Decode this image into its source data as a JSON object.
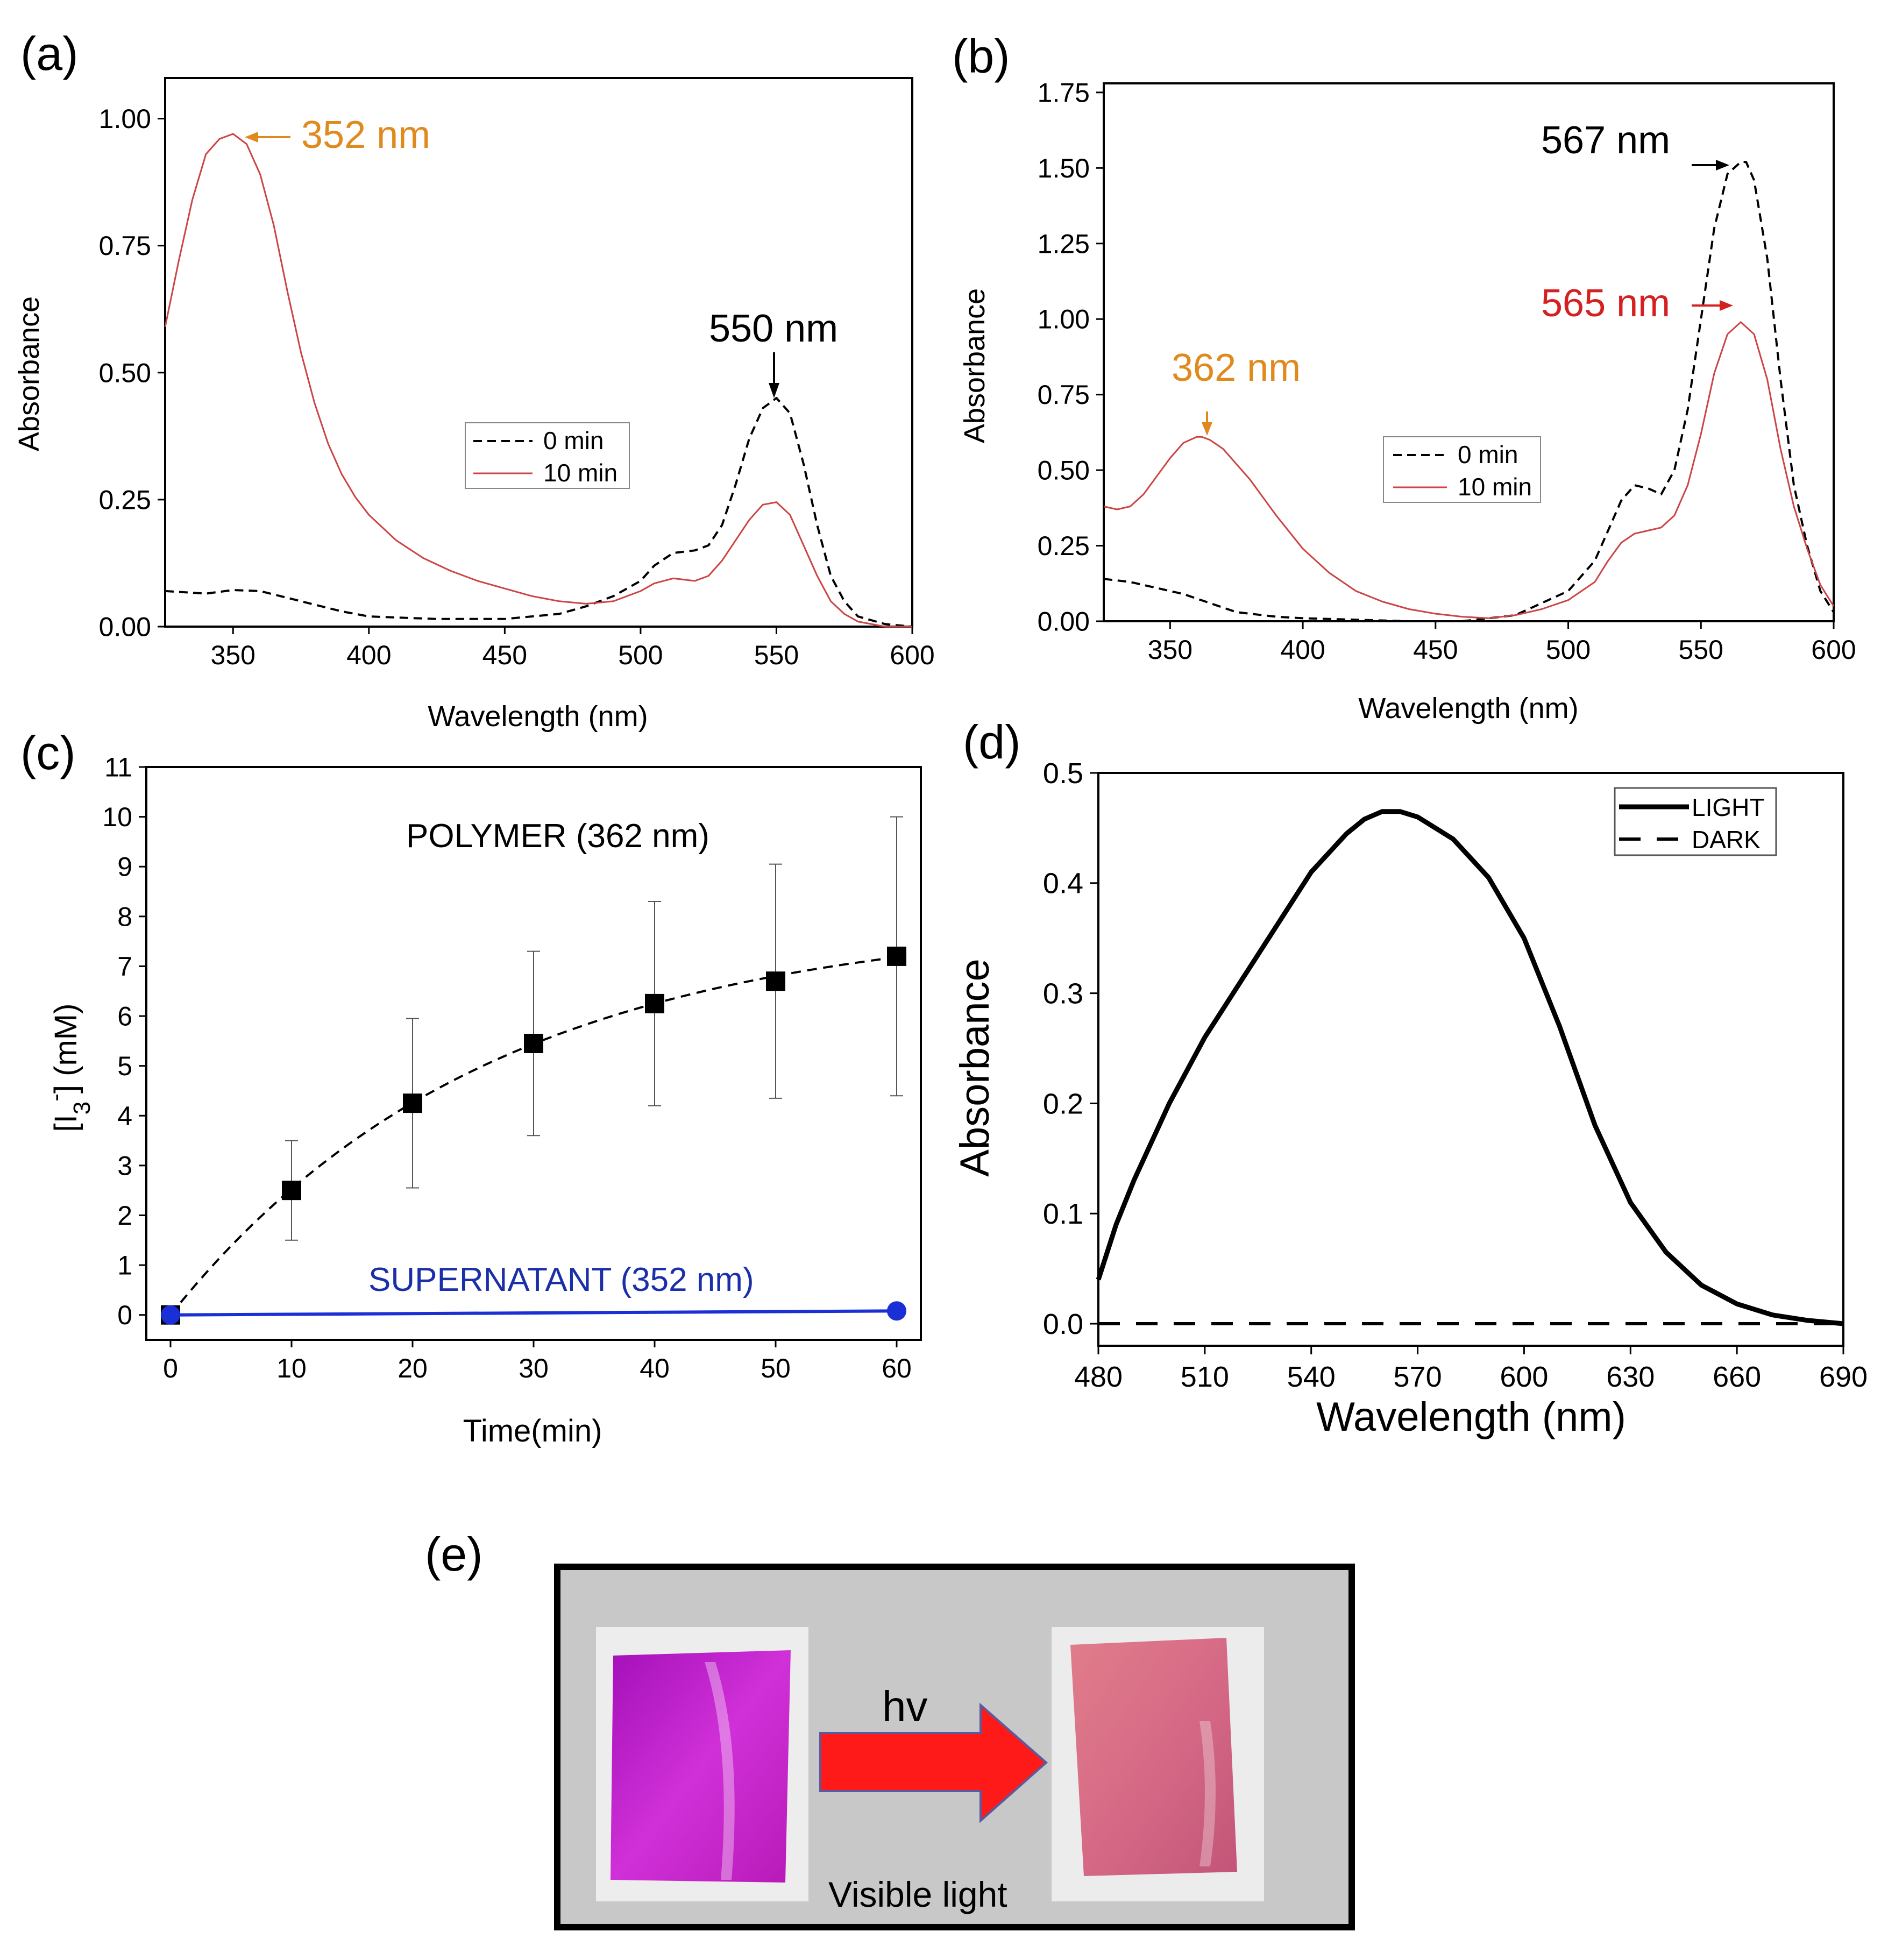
{
  "figure": {
    "panels": [
      "(a)",
      "(b)",
      "(c)",
      "(d)",
      "(e)"
    ]
  },
  "chart_data": [
    {
      "panel": "(a)",
      "type": "line",
      "xlabel": "Wavelength (nm)",
      "ylabel": "Absorbance",
      "xlim": [
        325,
        600
      ],
      "ylim": [
        0,
        1.08
      ],
      "xticks": [
        350,
        400,
        450,
        500,
        550,
        600
      ],
      "yticks": [
        0.0,
        0.25,
        0.5,
        0.75,
        1.0
      ],
      "ytick_labels": [
        "0.00",
        "0.25",
        "0.50",
        "0.75",
        "1.00"
      ],
      "legend": [
        "0 min",
        "10 min"
      ],
      "series": [
        {
          "name": "0 min",
          "color": "#000000",
          "dash": "dashed",
          "x": [
            325,
            340,
            350,
            360,
            375,
            390,
            400,
            425,
            450,
            470,
            480,
            490,
            500,
            505,
            512,
            520,
            525,
            530,
            535,
            540,
            545,
            550,
            555,
            560,
            565,
            570,
            575,
            580,
            590,
            600
          ],
          "y": [
            0.07,
            0.065,
            0.072,
            0.07,
            0.05,
            0.03,
            0.02,
            0.015,
            0.015,
            0.025,
            0.04,
            0.06,
            0.09,
            0.12,
            0.145,
            0.15,
            0.16,
            0.2,
            0.28,
            0.37,
            0.43,
            0.45,
            0.42,
            0.32,
            0.2,
            0.1,
            0.05,
            0.02,
            0.005,
            0.0
          ]
        },
        {
          "name": "10 min",
          "color": "#cc4444",
          "dash": "solid",
          "x": [
            325,
            330,
            335,
            340,
            345,
            350,
            355,
            360,
            365,
            370,
            375,
            380,
            385,
            390,
            395,
            400,
            410,
            420,
            430,
            440,
            450,
            460,
            470,
            480,
            490,
            500,
            505,
            512,
            520,
            525,
            530,
            535,
            540,
            545,
            550,
            555,
            560,
            565,
            570,
            575,
            580,
            590,
            600
          ],
          "y": [
            0.59,
            0.72,
            0.84,
            0.93,
            0.96,
            0.97,
            0.95,
            0.89,
            0.79,
            0.66,
            0.54,
            0.44,
            0.36,
            0.3,
            0.255,
            0.22,
            0.17,
            0.135,
            0.11,
            0.09,
            0.075,
            0.06,
            0.05,
            0.045,
            0.05,
            0.07,
            0.085,
            0.095,
            0.09,
            0.1,
            0.13,
            0.17,
            0.21,
            0.24,
            0.245,
            0.22,
            0.16,
            0.1,
            0.05,
            0.025,
            0.01,
            0.0,
            0.0
          ]
        }
      ],
      "annotations": [
        {
          "text": "352 nm",
          "color": "#e08a1e",
          "x": 350,
          "y": 0.97
        },
        {
          "text": "550 nm",
          "color": "#000000",
          "x": 550,
          "y": 0.45
        }
      ]
    },
    {
      "panel": "(b)",
      "type": "line",
      "xlabel": "Wavelength (nm)",
      "ylabel": "Absorbance",
      "xlim": [
        325,
        600
      ],
      "ylim": [
        0,
        1.78
      ],
      "xticks": [
        350,
        400,
        450,
        500,
        550,
        600
      ],
      "yticks": [
        0.0,
        0.25,
        0.5,
        0.75,
        1.0,
        1.25,
        1.5,
        1.75
      ],
      "ytick_labels": [
        "0.00",
        "0.25",
        "0.50",
        "0.75",
        "1.00",
        "1.25",
        "1.50",
        "1.75"
      ],
      "legend": [
        "0 min",
        "10 min"
      ],
      "series": [
        {
          "name": "0 min",
          "color": "#000000",
          "dash": "dashed",
          "x": [
            325,
            335,
            345,
            355,
            365,
            375,
            390,
            400,
            420,
            440,
            460,
            480,
            500,
            510,
            515,
            520,
            525,
            530,
            535,
            540,
            545,
            550,
            555,
            560,
            565,
            567,
            570,
            575,
            580,
            585,
            590,
            595,
            600
          ],
          "y": [
            0.14,
            0.13,
            0.11,
            0.09,
            0.06,
            0.03,
            0.015,
            0.01,
            0.005,
            0.0,
            0.0,
            0.02,
            0.1,
            0.2,
            0.3,
            0.4,
            0.45,
            0.44,
            0.42,
            0.5,
            0.7,
            1.0,
            1.3,
            1.48,
            1.52,
            1.52,
            1.46,
            1.2,
            0.8,
            0.45,
            0.25,
            0.1,
            0.03
          ]
        },
        {
          "name": "10 min",
          "color": "#cc4444",
          "dash": "solid",
          "x": [
            325,
            330,
            335,
            340,
            345,
            350,
            355,
            360,
            362,
            365,
            370,
            380,
            390,
            400,
            410,
            420,
            430,
            440,
            450,
            460,
            470,
            480,
            490,
            500,
            510,
            515,
            520,
            525,
            530,
            535,
            540,
            545,
            550,
            555,
            560,
            565,
            570,
            575,
            580,
            585,
            590,
            595,
            600
          ],
          "y": [
            0.38,
            0.37,
            0.38,
            0.42,
            0.48,
            0.54,
            0.59,
            0.61,
            0.61,
            0.6,
            0.57,
            0.47,
            0.35,
            0.24,
            0.16,
            0.1,
            0.065,
            0.04,
            0.025,
            0.015,
            0.01,
            0.02,
            0.04,
            0.07,
            0.13,
            0.2,
            0.26,
            0.29,
            0.3,
            0.31,
            0.35,
            0.45,
            0.62,
            0.82,
            0.95,
            0.99,
            0.95,
            0.8,
            0.57,
            0.38,
            0.24,
            0.12,
            0.05
          ]
        }
      ],
      "annotations": [
        {
          "text": "567 nm",
          "color": "#000000",
          "x": 567,
          "y": 1.52
        },
        {
          "text": "565 nm",
          "color": "#d42020",
          "x": 565,
          "y": 1.05
        },
        {
          "text": "362 nm",
          "color": "#e08a1e",
          "x": 362,
          "y": 0.61
        }
      ]
    },
    {
      "panel": "(c)",
      "type": "scatter",
      "xlabel": "Time(min)",
      "ylabel_main": "[I",
      "ylabel_sub": "3",
      "ylabel_sup": "-",
      "ylabel_tail": "] (mM)",
      "xlim": [
        -2,
        62
      ],
      "ylim": [
        -0.5,
        11
      ],
      "xticks": [
        0,
        10,
        20,
        30,
        40,
        50,
        60
      ],
      "yticks": [
        0,
        1,
        2,
        3,
        4,
        5,
        6,
        7,
        8,
        9,
        10,
        11
      ],
      "series": [
        {
          "name": "POLYMER (362 nm)",
          "color": "#000000",
          "marker": "square",
          "x": [
            0,
            10,
            20,
            30,
            40,
            50,
            60
          ],
          "y": [
            0,
            2.5,
            4.25,
            5.45,
            6.25,
            6.7,
            7.2
          ],
          "yerr": [
            0,
            1.0,
            1.7,
            1.85,
            2.05,
            2.35,
            2.8
          ],
          "fit": {
            "type": "exponential",
            "a": 8.0,
            "k": 0.038
          }
        },
        {
          "name": "SUPERNATANT (352 nm)",
          "color": "#1a2fd6",
          "marker": "circle",
          "x": [
            0,
            60
          ],
          "y": [
            0,
            0.08
          ]
        }
      ],
      "labels": [
        {
          "text": "POLYMER (362 nm)",
          "color": "#000000"
        },
        {
          "text": "SUPERNATANT (352 nm)",
          "color": "#1a2fa8"
        }
      ]
    },
    {
      "panel": "(d)",
      "type": "line",
      "xlabel": "Wavelength (nm)",
      "ylabel": "Absorbance",
      "xlim": [
        480,
        690
      ],
      "ylim": [
        -0.02,
        0.5
      ],
      "xticks": [
        480,
        510,
        540,
        570,
        600,
        630,
        660,
        690
      ],
      "yticks": [
        0.0,
        0.1,
        0.2,
        0.3,
        0.4,
        0.5
      ],
      "ytick_labels": [
        "0.0",
        "0.1",
        "0.2",
        "0.3",
        "0.4",
        "0.5"
      ],
      "legend": [
        "LIGHT",
        "DARK"
      ],
      "series": [
        {
          "name": "LIGHT",
          "color": "#000000",
          "dash": "solid",
          "x": [
            480,
            485,
            490,
            495,
            500,
            510,
            520,
            530,
            540,
            550,
            555,
            560,
            565,
            570,
            580,
            590,
            600,
            610,
            620,
            630,
            640,
            650,
            660,
            670,
            680,
            690
          ],
          "y": [
            0.04,
            0.09,
            0.13,
            0.165,
            0.2,
            0.26,
            0.31,
            0.36,
            0.41,
            0.445,
            0.458,
            0.465,
            0.465,
            0.46,
            0.44,
            0.405,
            0.35,
            0.27,
            0.18,
            0.11,
            0.065,
            0.035,
            0.018,
            0.008,
            0.003,
            0.0
          ]
        },
        {
          "name": "DARK",
          "color": "#000000",
          "dash": "dashed",
          "x": [
            480,
            510,
            540,
            570,
            600,
            630,
            660,
            690
          ],
          "y": [
            0.0,
            0.0,
            0.0,
            0.0,
            0.0,
            0.0,
            0.0,
            0.0
          ]
        }
      ]
    }
  ],
  "panel_e": {
    "label": "(e)",
    "arrow_text": "hv",
    "caption": "Visible light",
    "colors": {
      "background": "#c8c8c8",
      "arrow": "#ff1a1a",
      "film_before": "#cc22cc",
      "film_after": "#d86a8a"
    }
  }
}
